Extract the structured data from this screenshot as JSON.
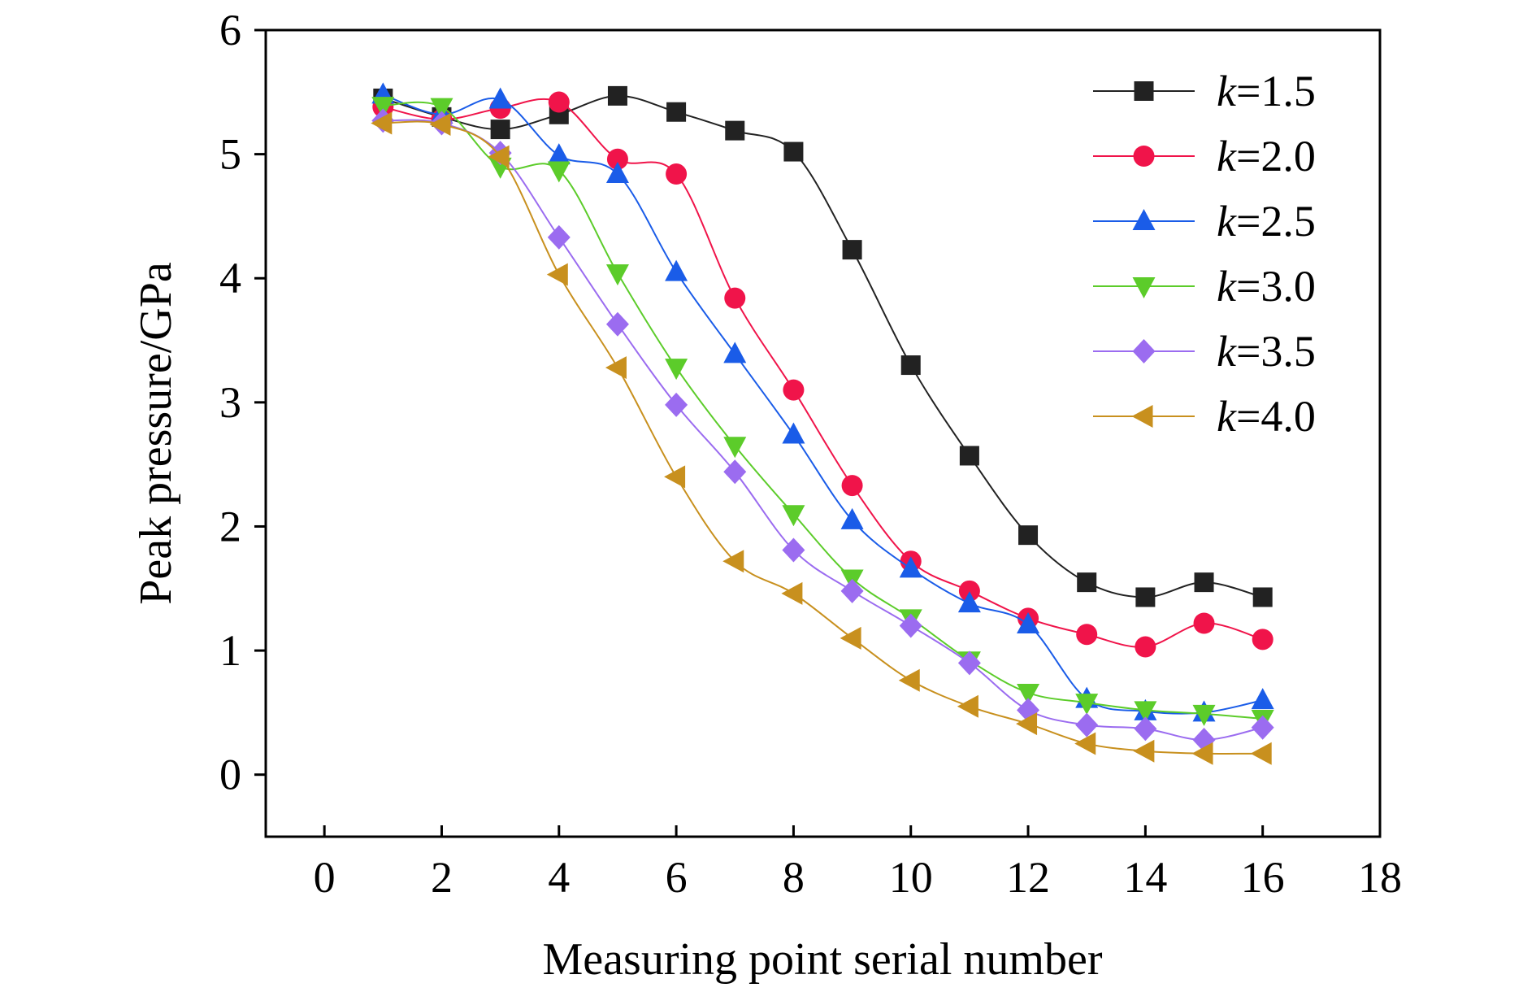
{
  "chart_data": {
    "type": "line",
    "xlabel": "Measuring point serial number",
    "ylabel": "Peak pressure/GPa",
    "xlim": [
      -1,
      18
    ],
    "ylim": [
      -0.5,
      6
    ],
    "xticks": [
      0,
      2,
      4,
      6,
      8,
      10,
      12,
      14,
      16,
      18
    ],
    "yticks": [
      0,
      1,
      2,
      3,
      4,
      5,
      6
    ],
    "grid": false,
    "legend_position": "top-right",
    "x": [
      1,
      2,
      3,
      4,
      5,
      6,
      7,
      8,
      9,
      10,
      11,
      12,
      13,
      14,
      15,
      16
    ],
    "series": [
      {
        "name_prefix": "k",
        "name_suffix": "=1.5",
        "color": "#222222",
        "marker": "square",
        "values": [
          5.45,
          5.3,
          5.2,
          5.32,
          5.47,
          5.34,
          5.19,
          5.02,
          4.23,
          3.3,
          2.57,
          1.93,
          1.55,
          1.43,
          1.55,
          1.43
        ]
      },
      {
        "name_prefix": "k",
        "name_suffix": "=2.0",
        "color": "#f0144a",
        "marker": "circle",
        "values": [
          5.38,
          5.28,
          5.37,
          5.42,
          4.96,
          4.84,
          3.84,
          3.1,
          2.33,
          1.72,
          1.48,
          1.26,
          1.13,
          1.03,
          1.22,
          1.09
        ]
      },
      {
        "name_prefix": "k",
        "name_suffix": "=2.5",
        "color": "#1a5ce8",
        "marker": "triangle-up",
        "values": [
          5.48,
          5.32,
          5.44,
          4.99,
          4.84,
          4.05,
          3.39,
          2.74,
          2.05,
          1.66,
          1.38,
          1.21,
          0.61,
          0.51,
          0.5,
          0.6
        ]
      },
      {
        "name_prefix": "k",
        "name_suffix": "=3.0",
        "color": "#5ccc2a",
        "marker": "triangle-down",
        "values": [
          5.39,
          5.38,
          4.9,
          4.87,
          4.04,
          3.28,
          2.65,
          2.1,
          1.58,
          1.26,
          0.92,
          0.66,
          0.58,
          0.52,
          0.49,
          0.45
        ]
      },
      {
        "name_prefix": "k",
        "name_suffix": "=3.5",
        "color": "#9b6cf0",
        "marker": "diamond",
        "values": [
          5.27,
          5.25,
          5.01,
          4.33,
          3.63,
          2.98,
          2.44,
          1.81,
          1.48,
          1.2,
          0.9,
          0.52,
          0.4,
          0.37,
          0.28,
          0.38
        ]
      },
      {
        "name_prefix": "k",
        "name_suffix": "=4.0",
        "color": "#c8901e",
        "marker": "triangle-left",
        "values": [
          5.25,
          5.24,
          4.98,
          4.03,
          3.28,
          2.4,
          1.72,
          1.46,
          1.1,
          0.76,
          0.55,
          0.41,
          0.25,
          0.19,
          0.17,
          0.17
        ]
      }
    ]
  }
}
